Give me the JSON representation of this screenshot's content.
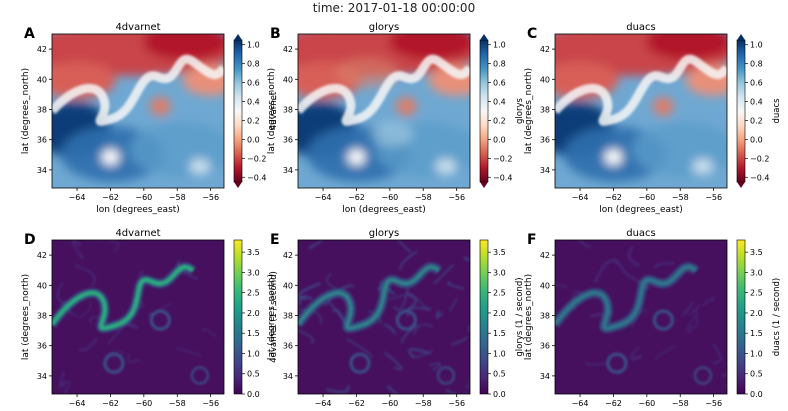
{
  "figure": {
    "suptitle": "time: 2017-01-18 00:00:00"
  },
  "colormaps": {
    "RdBu": [
      "#67001f",
      "#b2182b",
      "#d6604d",
      "#f4a582",
      "#fddbc7",
      "#f7f7f7",
      "#d1e5f0",
      "#92c5de",
      "#4393c3",
      "#2166ac",
      "#053061"
    ],
    "viridis": [
      "#440154",
      "#482878",
      "#3e4989",
      "#31688e",
      "#26828e",
      "#1f9e89",
      "#35b779",
      "#6ece58",
      "#b5de2b",
      "#fde725"
    ]
  },
  "chart_data": [
    {
      "type": "heatmap",
      "panel_label": "A",
      "title": "4dvarnet",
      "xlabel": "lon (degrees_east)",
      "ylabel": "lat (degrees_north)",
      "xlim": [
        -65.5,
        -55.2
      ],
      "ylim": [
        32.8,
        43
      ],
      "xticks": [
        -64,
        -62,
        -60,
        -58,
        -56
      ],
      "yticks": [
        34,
        36,
        38,
        40,
        42
      ],
      "colorbar": {
        "label": "4dvarnet",
        "cmap": "RdBu",
        "vmin": -0.45,
        "vmax": 1.05,
        "ticks": [
          -0.4,
          -0.2,
          0.0,
          0.2,
          0.4,
          0.6,
          0.8,
          1.0
        ],
        "tick_labels": [
          "−0.4",
          "−0.2",
          "0.0",
          "0.2",
          "0.4",
          "0.6",
          "0.8",
          "1.0"
        ]
      }
    },
    {
      "type": "heatmap",
      "panel_label": "B",
      "title": "glorys",
      "xlabel": "lon (degrees_east)",
      "ylabel": "lat (degrees_north)",
      "xlim": [
        -65.5,
        -55.2
      ],
      "ylim": [
        32.8,
        43
      ],
      "xticks": [
        -64,
        -62,
        -60,
        -58,
        -56
      ],
      "yticks": [
        34,
        36,
        38,
        40,
        42
      ],
      "colorbar": {
        "label": "glorys",
        "cmap": "RdBu",
        "vmin": -0.45,
        "vmax": 1.05,
        "ticks": [
          -0.4,
          -0.2,
          0.0,
          0.2,
          0.4,
          0.6,
          0.8,
          1.0
        ],
        "tick_labels": [
          "−0.4",
          "−0.2",
          "0.0",
          "0.2",
          "0.4",
          "0.6",
          "0.8",
          "1.0"
        ]
      }
    },
    {
      "type": "heatmap",
      "panel_label": "C",
      "title": "duacs",
      "xlabel": "lon (degrees_east)",
      "ylabel": "lat (degrees_north)",
      "xlim": [
        -65.5,
        -55.2
      ],
      "ylim": [
        32.8,
        43
      ],
      "xticks": [
        -64,
        -62,
        -60,
        -58,
        -56
      ],
      "yticks": [
        34,
        36,
        38,
        40,
        42
      ],
      "colorbar": {
        "label": "duacs",
        "cmap": "RdBu",
        "vmin": -0.45,
        "vmax": 1.05,
        "ticks": [
          -0.4,
          -0.2,
          0.0,
          0.2,
          0.4,
          0.6,
          0.8,
          1.0
        ],
        "tick_labels": [
          "−0.4",
          "−0.2",
          "0.0",
          "0.2",
          "0.4",
          "0.6",
          "0.8",
          "1.0"
        ]
      }
    },
    {
      "type": "heatmap",
      "panel_label": "D",
      "title": "4dvarnet",
      "xlabel": "",
      "ylabel": "lat (degrees_north)",
      "xlim": [
        -65.5,
        -55.2
      ],
      "ylim": [
        32.8,
        43
      ],
      "xticks": [
        -64,
        -62,
        -60,
        -58,
        -56
      ],
      "yticks": [
        34,
        36,
        38,
        40,
        42
      ],
      "colorbar": {
        "label": "4dvarnet (1 / second)",
        "cmap": "viridis",
        "vmin": 0.0,
        "vmax": 3.8,
        "ticks": [
          0.0,
          0.5,
          1.0,
          1.5,
          2.0,
          2.5,
          3.0,
          3.5
        ],
        "tick_labels": [
          "0.0",
          "0.5",
          "1.0",
          "1.5",
          "2.0",
          "2.5",
          "3.0",
          "3.5"
        ]
      }
    },
    {
      "type": "heatmap",
      "panel_label": "E",
      "title": "glorys",
      "xlabel": "",
      "ylabel": "lat (degrees_north)",
      "xlim": [
        -65.5,
        -55.2
      ],
      "ylim": [
        32.8,
        43
      ],
      "xticks": [
        -64,
        -62,
        -60,
        -58,
        -56
      ],
      "yticks": [
        34,
        36,
        38,
        40,
        42
      ],
      "colorbar": {
        "label": "glorys (1 / second)",
        "cmap": "viridis",
        "vmin": 0.0,
        "vmax": 3.8,
        "ticks": [
          0.0,
          0.5,
          1.0,
          1.5,
          2.0,
          2.5,
          3.0,
          3.5
        ],
        "tick_labels": [
          "0.0",
          "0.5",
          "1.0",
          "1.5",
          "2.0",
          "2.5",
          "3.0",
          "3.5"
        ]
      }
    },
    {
      "type": "heatmap",
      "panel_label": "F",
      "title": "duacs",
      "xlabel": "",
      "ylabel": "lat (degrees_north)",
      "xlim": [
        -65.5,
        -55.2
      ],
      "ylim": [
        32.8,
        43
      ],
      "xticks": [
        -64,
        -62,
        -60,
        -58,
        -56
      ],
      "yticks": [
        34,
        36,
        38,
        40,
        42
      ],
      "colorbar": {
        "label": "duacs (1 / second)",
        "cmap": "viridis",
        "vmin": 0.0,
        "vmax": 3.8,
        "ticks": [
          0.0,
          0.5,
          1.0,
          1.5,
          2.0,
          2.5,
          3.0,
          3.5
        ],
        "tick_labels": [
          "0.0",
          "0.5",
          "1.0",
          "1.5",
          "2.0",
          "2.5",
          "3.0",
          "3.5"
        ]
      }
    }
  ]
}
